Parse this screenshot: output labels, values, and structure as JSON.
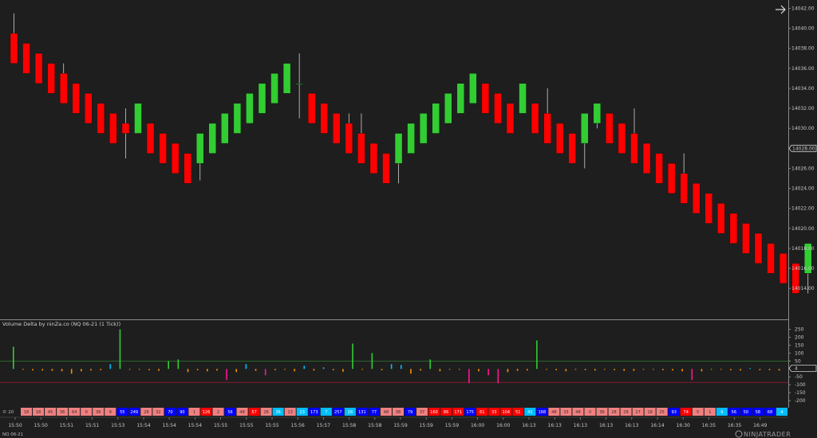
{
  "chart_data": {
    "type": "candlestick",
    "instrument": "NQ 06-21",
    "price_axis": {
      "ticks": [
        14014,
        14016,
        14018,
        14020,
        14022,
        14024,
        14026,
        14030,
        14032,
        14034,
        14036,
        14038,
        14040,
        14042
      ],
      "tick_labels": [
        "14014.00",
        "14016.00",
        "14018.00",
        "14020.00",
        "14022.00",
        "14024.00",
        "14026.00",
        "14030.00",
        "14032.00",
        "14034.00",
        "14036.00",
        "14038.00",
        "14040.00",
        "14042.00"
      ],
      "ylim": [
        14012.1,
        14042.2
      ],
      "current_price_label": "14028.00",
      "current_price": 14028
    },
    "up_color": "#32cd32",
    "down_color": "#ff0000",
    "candles": [
      {
        "o": 14039.5,
        "h": 14041.5,
        "l": 14036.5,
        "c": 14036.5
      },
      {
        "o": 14038.5,
        "h": 14038.5,
        "l": 14035.5,
        "c": 14035.5
      },
      {
        "o": 14037.5,
        "h": 14037.5,
        "l": 14034.5,
        "c": 14034.5
      },
      {
        "o": 14036.5,
        "h": 14036.5,
        "l": 14033.5,
        "c": 14033.5
      },
      {
        "o": 14035.5,
        "h": 14036.5,
        "l": 14032.5,
        "c": 14032.5
      },
      {
        "o": 14034.5,
        "h": 14034.5,
        "l": 14031.5,
        "c": 14031.5
      },
      {
        "o": 14033.5,
        "h": 14033.5,
        "l": 14030.5,
        "c": 14030.5
      },
      {
        "o": 14032.5,
        "h": 14032.5,
        "l": 14029.5,
        "c": 14029.5
      },
      {
        "o": 14031.5,
        "h": 14031.5,
        "l": 14028.5,
        "c": 14028.5
      },
      {
        "o": 14030.5,
        "h": 14032.0,
        "l": 14027.0,
        "c": 14029.5
      },
      {
        "o": 14029.5,
        "h": 14032.5,
        "l": 14029.5,
        "c": 14032.5
      },
      {
        "o": 14030.5,
        "h": 14030.5,
        "l": 14027.5,
        "c": 14027.5
      },
      {
        "o": 14029.5,
        "h": 14029.5,
        "l": 14026.5,
        "c": 14026.5
      },
      {
        "o": 14028.5,
        "h": 14028.5,
        "l": 14025.5,
        "c": 14025.5
      },
      {
        "o": 14027.5,
        "h": 14027.5,
        "l": 14024.5,
        "c": 14024.5
      },
      {
        "o": 14026.5,
        "h": 14029.5,
        "l": 14024.8,
        "c": 14029.5
      },
      {
        "o": 14027.5,
        "h": 14030.5,
        "l": 14027.5,
        "c": 14030.5
      },
      {
        "o": 14028.5,
        "h": 14031.5,
        "l": 14028.5,
        "c": 14031.5
      },
      {
        "o": 14029.5,
        "h": 14032.5,
        "l": 14029.5,
        "c": 14032.5
      },
      {
        "o": 14030.5,
        "h": 14033.5,
        "l": 14030.5,
        "c": 14033.5
      },
      {
        "o": 14031.5,
        "h": 14034.5,
        "l": 14031.5,
        "c": 14034.5
      },
      {
        "o": 14032.5,
        "h": 14035.5,
        "l": 14032.5,
        "c": 14035.5
      },
      {
        "o": 14033.5,
        "h": 14036.5,
        "l": 14033.5,
        "c": 14036.5
      },
      {
        "o": 14034.5,
        "h": 14037.5,
        "l": 14031.0,
        "c": 14034.5
      },
      {
        "o": 14033.5,
        "h": 14033.5,
        "l": 14030.5,
        "c": 14030.5
      },
      {
        "o": 14032.5,
        "h": 14032.5,
        "l": 14029.5,
        "c": 14029.5
      },
      {
        "o": 14031.5,
        "h": 14031.5,
        "l": 14028.5,
        "c": 14028.5
      },
      {
        "o": 14030.5,
        "h": 14031.5,
        "l": 14027.5,
        "c": 14027.5
      },
      {
        "o": 14029.5,
        "h": 14031.5,
        "l": 14026.5,
        "c": 14026.5
      },
      {
        "o": 14028.5,
        "h": 14028.5,
        "l": 14025.5,
        "c": 14025.5
      },
      {
        "o": 14027.5,
        "h": 14027.5,
        "l": 14024.5,
        "c": 14024.5
      },
      {
        "o": 14026.5,
        "h": 14029.5,
        "l": 14024.5,
        "c": 14029.5
      },
      {
        "o": 14027.5,
        "h": 14030.5,
        "l": 14027.5,
        "c": 14030.5
      },
      {
        "o": 14028.5,
        "h": 14031.5,
        "l": 14028.5,
        "c": 14031.5
      },
      {
        "o": 14029.5,
        "h": 14032.5,
        "l": 14029.5,
        "c": 14032.5
      },
      {
        "o": 14030.5,
        "h": 14033.5,
        "l": 14030.5,
        "c": 14033.5
      },
      {
        "o": 14031.5,
        "h": 14034.5,
        "l": 14031.5,
        "c": 14034.5
      },
      {
        "o": 14032.5,
        "h": 14035.5,
        "l": 14032.5,
        "c": 14035.5
      },
      {
        "o": 14034.5,
        "h": 14034.5,
        "l": 14031.5,
        "c": 14031.5
      },
      {
        "o": 14033.5,
        "h": 14033.5,
        "l": 14030.5,
        "c": 14030.5
      },
      {
        "o": 14032.5,
        "h": 14032.5,
        "l": 14029.5,
        "c": 14029.5
      },
      {
        "o": 14031.5,
        "h": 14034.5,
        "l": 14031.5,
        "c": 14034.5
      },
      {
        "o": 14032.5,
        "h": 14032.5,
        "l": 14029.5,
        "c": 14029.5
      },
      {
        "o": 14031.5,
        "h": 14034.0,
        "l": 14028.5,
        "c": 14028.5
      },
      {
        "o": 14030.5,
        "h": 14030.5,
        "l": 14027.5,
        "c": 14027.5
      },
      {
        "o": 14029.5,
        "h": 14029.5,
        "l": 14026.5,
        "c": 14026.5
      },
      {
        "o": 14028.5,
        "h": 14031.5,
        "l": 14026.0,
        "c": 14031.5
      },
      {
        "o": 14030.5,
        "h": 14032.5,
        "l": 14030.0,
        "c": 14032.5
      },
      {
        "o": 14031.5,
        "h": 14031.5,
        "l": 14028.5,
        "c": 14028.5
      },
      {
        "o": 14030.5,
        "h": 14030.5,
        "l": 14027.5,
        "c": 14027.5
      },
      {
        "o": 14029.5,
        "h": 14032.0,
        "l": 14026.5,
        "c": 14026.5
      },
      {
        "o": 14028.5,
        "h": 14028.5,
        "l": 14025.5,
        "c": 14025.5
      },
      {
        "o": 14027.5,
        "h": 14027.5,
        "l": 14024.5,
        "c": 14024.5
      },
      {
        "o": 14026.5,
        "h": 14026.5,
        "l": 14023.5,
        "c": 14023.5
      },
      {
        "o": 14025.5,
        "h": 14027.5,
        "l": 14022.5,
        "c": 14022.5
      },
      {
        "o": 14024.5,
        "h": 14024.5,
        "l": 14021.5,
        "c": 14021.5
      },
      {
        "o": 14023.5,
        "h": 14023.5,
        "l": 14020.5,
        "c": 14020.5
      },
      {
        "o": 14022.5,
        "h": 14022.5,
        "l": 14019.5,
        "c": 14019.5
      },
      {
        "o": 14021.5,
        "h": 14021.5,
        "l": 14018.5,
        "c": 14018.5
      },
      {
        "o": 14020.5,
        "h": 14020.5,
        "l": 14017.5,
        "c": 14017.5
      },
      {
        "o": 14019.5,
        "h": 14019.5,
        "l": 14016.5,
        "c": 14016.5
      },
      {
        "o": 14018.5,
        "h": 14018.5,
        "l": 14015.5,
        "c": 14015.5
      },
      {
        "o": 14017.5,
        "h": 14017.5,
        "l": 14014.5,
        "c": 14014.5
      },
      {
        "o": 14016.5,
        "h": 14016.5,
        "l": 14013.5,
        "c": 14013.5
      },
      {
        "o": 14015.5,
        "h": 14018.5,
        "l": 14013.5,
        "c": 14018.5
      },
      {
        "o": 14016.5,
        "h": 14019.5,
        "l": 14016.5,
        "c": 14019.5
      },
      {
        "o": 14017.5,
        "h": 14020.5,
        "l": 14017.5,
        "c": 14020.5
      },
      {
        "o": 14018.5,
        "h": 14021.5,
        "l": 14018.5,
        "c": 14021.5
      },
      {
        "o": 14019.5,
        "h": 14022.5,
        "l": 14019.5,
        "c": 14022.5
      },
      {
        "o": 14020.5,
        "h": 14023.5,
        "l": 14020.5,
        "c": 14023.5
      },
      {
        "o": 14021.5,
        "h": 14024.5,
        "l": 14021.5,
        "c": 14024.5
      },
      {
        "o": 14022.5,
        "h": 14025.5,
        "l": 14021.5,
        "c": 14025.5
      },
      {
        "o": 14023.5,
        "h": 14026.5,
        "l": 14022.0,
        "c": 14026.5
      },
      {
        "o": 14024.5,
        "h": 14027.5,
        "l": 14024.5,
        "c": 14027.5
      },
      {
        "o": 14025.5,
        "h": 14028.5,
        "l": 14024.5,
        "c": 14028.5
      }
    ],
    "time_labels": [
      "15:50",
      "15:50",
      "15:51",
      "15:51",
      "15:53",
      "15:54",
      "15:54",
      "15:54",
      "15:55",
      "15:55",
      "15:55",
      "15:56",
      "15:57",
      "15:58",
      "15:58",
      "15:59",
      "15:59",
      "15:59",
      "16:00",
      "16:00",
      "16:13",
      "16:13",
      "16:13",
      "16:13",
      "16:13",
      "16:14",
      "16:30",
      "16:35",
      "16:35",
      "16:49"
    ],
    "indicator": {
      "title": "Volume Delta by ninZa.co (NQ 06-21 (1 Tick))",
      "axis_ticks": [
        250,
        200,
        150,
        100,
        50,
        -50,
        -100,
        -150,
        -200
      ],
      "axis_tick_labels": [
        "250",
        "200",
        "150",
        "100",
        "50",
        "-50",
        "-100",
        "-150",
        "-200"
      ],
      "ylim": [
        -235,
        268
      ],
      "upper_level": 50,
      "lower_level": -85,
      "current_label": "4",
      "current_value": 4,
      "colors": {
        "strong_up": "#32cd32",
        "weak_up": "#00bfff",
        "weak_down": "#ff8c00",
        "strong_down": "#ff1493"
      },
      "bars": [
        140,
        -5,
        -10,
        -10,
        -12,
        -15,
        -30,
        -15,
        -10,
        -8,
        30,
        250,
        -5,
        -5,
        -8,
        -12,
        50,
        60,
        -20,
        -8,
        -15,
        -10,
        -70,
        -20,
        30,
        -12,
        -40,
        -8,
        -5,
        -15,
        20,
        -10,
        10,
        -8,
        -18,
        160,
        -5,
        100,
        -8,
        30,
        25,
        -30,
        -10,
        60,
        -15,
        -5,
        -5,
        -90,
        -15,
        -40,
        -90,
        -20,
        -12,
        -10,
        180,
        -5,
        -8,
        -15,
        -5,
        -8,
        -10,
        -5,
        -8,
        -12,
        -12,
        -5,
        -5,
        -8,
        -10,
        -15,
        -70,
        -15,
        -5,
        -5,
        -8,
        -10,
        5,
        -8,
        -8,
        -10
      ]
    },
    "delta_boxes": {
      "values": [
        "18",
        "18",
        "45",
        "36",
        "64",
        "0",
        "36",
        "9",
        "55",
        "249",
        "28",
        "32",
        "70",
        "90",
        "1",
        "126",
        "2",
        "56",
        "48",
        "57",
        "26",
        "36",
        "13",
        "23",
        "173",
        "7",
        "257",
        "28",
        "131",
        "77",
        "48",
        "38",
        "79",
        "37",
        "160",
        "86",
        "171",
        "175",
        "61",
        "33",
        "104",
        "51",
        "41",
        "188",
        "48",
        "33",
        "48",
        "0",
        "36",
        "28",
        "28",
        "17",
        "18",
        "25",
        "93",
        "74",
        "5",
        "1",
        "9",
        "56",
        "50",
        "58",
        "68",
        "4"
      ],
      "colors": [
        "#f08080",
        "#f08080",
        "#f08080",
        "#f08080",
        "#f08080",
        "#f08080",
        "#f08080",
        "#f08080",
        "#0000ff",
        "#0000ff",
        "#f08080",
        "#f08080",
        "#0000ff",
        "#0000ff",
        "#f08080",
        "#ff0000",
        "#f08080",
        "#0000ff",
        "#f08080",
        "#ff0000",
        "#f08080",
        "#00bfff",
        "#f08080",
        "#00bfff",
        "#0000ff",
        "#00bfff",
        "#0000ff",
        "#00bfff",
        "#0000ff",
        "#0000ff",
        "#f08080",
        "#f08080",
        "#0000ff",
        "#f08080",
        "#ff0000",
        "#ff0000",
        "#ff0000",
        "#0000ff",
        "#ff0000",
        "#ff0000",
        "#ff0000",
        "#ff0000",
        "#00bfff",
        "#0000ff",
        "#f08080",
        "#f08080",
        "#f08080",
        "#f08080",
        "#f08080",
        "#f08080",
        "#f08080",
        "#f08080",
        "#f08080",
        "#f08080",
        "#0000ff",
        "#ff0000",
        "#f08080",
        "#f08080",
        "#00bfff",
        "#0000ff",
        "#0000ff",
        "#0000ff",
        "#0000ff",
        "#00bfff"
      ]
    },
    "copyright_text": "© 20",
    "footer_instrument": "NQ 06-21",
    "brand": "NINJATRADER",
    "arrow_icon": "arrow-right-icon"
  }
}
